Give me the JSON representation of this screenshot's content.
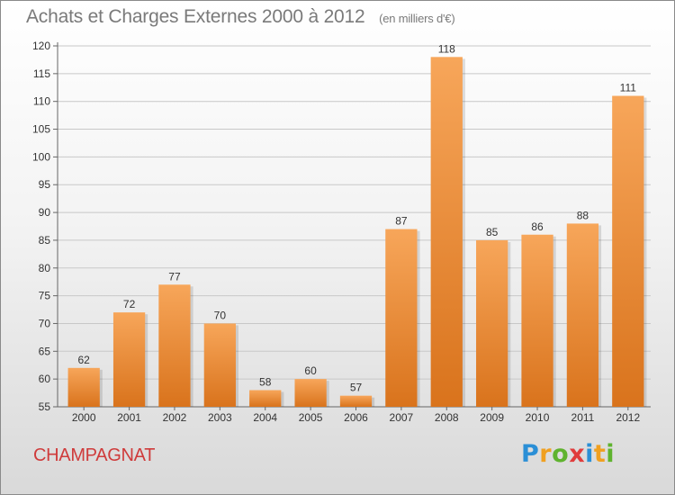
{
  "title": "Achats et Charges Externes 2000 à 2012",
  "subtitle": "(en milliers d'€)",
  "commune": "CHAMPAGNAT",
  "logo": {
    "letters": [
      "P",
      "r",
      "o",
      "x",
      "i",
      "t",
      "i"
    ],
    "colors": [
      "#2b8fd6",
      "#f0a020",
      "#5fb32e",
      "#e03c3c",
      "#2b8fd6",
      "#f0a020",
      "#5fb32e"
    ]
  },
  "colors": {
    "bar_top": "#f7a65a",
    "bar_bottom": "#d9731c",
    "title": "#7a7a7a",
    "commune": "#cf3b3b"
  },
  "chart_data": {
    "type": "bar",
    "categories": [
      "2000",
      "2001",
      "2002",
      "2003",
      "2004",
      "2005",
      "2006",
      "2007",
      "2008",
      "2009",
      "2010",
      "2011",
      "2012"
    ],
    "values": [
      62,
      72,
      77,
      70,
      58,
      60,
      57,
      87,
      118,
      85,
      86,
      88,
      111
    ],
    "ylim": [
      55,
      120
    ],
    "yticks": [
      55,
      60,
      65,
      70,
      75,
      80,
      85,
      90,
      95,
      100,
      105,
      110,
      115,
      120
    ],
    "grid": true,
    "xlabel": "",
    "ylabel": ""
  }
}
